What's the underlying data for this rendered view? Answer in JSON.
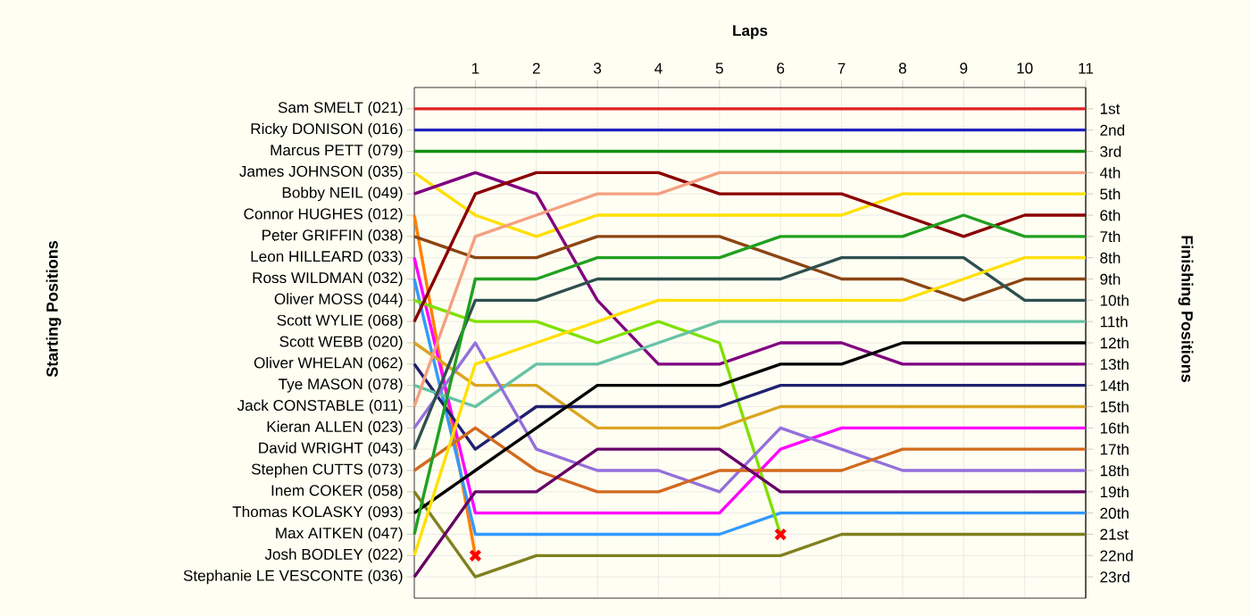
{
  "chart_data": {
    "type": "line",
    "xlabel": "Laps",
    "annotations": [
      "Starting Positions"
    ],
    "y2label": "Finishing Positions",
    "x": [
      0,
      1,
      2,
      3,
      4,
      5,
      6,
      7,
      8,
      9,
      10,
      11
    ],
    "xlim": [
      0,
      11
    ],
    "xticks": [
      1,
      2,
      3,
      4,
      5,
      6,
      7,
      8,
      9,
      10,
      11
    ],
    "y2lim": [
      24,
      0
    ],
    "grid": true,
    "y2ticks": [
      {
        "value": 1,
        "label": "1st"
      },
      {
        "value": 2,
        "label": "2nd"
      },
      {
        "value": 3,
        "label": "3rd"
      },
      {
        "value": 4,
        "label": "4th"
      },
      {
        "value": 5,
        "label": "5th"
      },
      {
        "value": 6,
        "label": "6th"
      },
      {
        "value": 7,
        "label": "7th"
      },
      {
        "value": 8,
        "label": "8th"
      },
      {
        "value": 9,
        "label": "9th"
      },
      {
        "value": 10,
        "label": "10th"
      },
      {
        "value": 11,
        "label": "11th"
      },
      {
        "value": 12,
        "label": "12th"
      },
      {
        "value": 13,
        "label": "13th"
      },
      {
        "value": 14,
        "label": "14th"
      },
      {
        "value": 15,
        "label": "15th"
      },
      {
        "value": 16,
        "label": "16th"
      },
      {
        "value": 17,
        "label": "17th"
      },
      {
        "value": 18,
        "label": "18th"
      },
      {
        "value": 19,
        "label": "19th"
      },
      {
        "value": 20,
        "label": "20th"
      },
      {
        "value": 21,
        "label": "21st"
      },
      {
        "value": 22,
        "label": "22nd"
      },
      {
        "value": 23,
        "label": "23rd"
      }
    ],
    "series": [
      {
        "name": "Sam SMELT (021)",
        "axis": "y2",
        "color": "#e02020",
        "values": [
          1,
          1,
          1,
          1,
          1,
          1,
          1,
          1,
          1,
          1,
          1,
          1
        ]
      },
      {
        "name": "Ricky DONISON (016)",
        "axis": "y2",
        "color": "#2020c0",
        "values": [
          2,
          2,
          2,
          2,
          2,
          2,
          2,
          2,
          2,
          2,
          2,
          2
        ]
      },
      {
        "name": "Marcus PETT (079)",
        "axis": "y2",
        "color": "#109010",
        "values": [
          3,
          3,
          3,
          3,
          3,
          3,
          3,
          3,
          3,
          3,
          3,
          3
        ]
      },
      {
        "name": "James JOHNSON (035)",
        "axis": "y2",
        "color": "#ffe000",
        "values": [
          4,
          6,
          7,
          6,
          6,
          6,
          6,
          6,
          5,
          5,
          5,
          5
        ]
      },
      {
        "name": "Bobby NEIL (049)",
        "axis": "y2",
        "color": "#800080",
        "values": [
          5,
          4,
          5,
          10,
          13,
          13,
          12,
          12,
          13,
          13,
          13,
          13
        ]
      },
      {
        "name": "Connor HUGHES (012)",
        "axis": "y2",
        "color": "#ff8000",
        "values": [
          6,
          22,
          null,
          null,
          null,
          null,
          null,
          null,
          null,
          null,
          null,
          null
        ]
      },
      {
        "name": "Peter GRIFFIN (038)",
        "axis": "y2",
        "color": "#8b4513",
        "values": [
          7,
          8,
          8,
          7,
          7,
          7,
          8,
          9,
          9,
          10,
          9,
          9
        ]
      },
      {
        "name": "Leon HILLEARD (033)",
        "axis": "y2",
        "color": "#ff00ff",
        "values": [
          8,
          20,
          20,
          20,
          20,
          20,
          17,
          16,
          16,
          16,
          16,
          16
        ]
      },
      {
        "name": "Ross WILDMAN (032)",
        "axis": "y2",
        "color": "#3399ff",
        "values": [
          9,
          21,
          21,
          21,
          21,
          21,
          20,
          20,
          20,
          20,
          20,
          20
        ]
      },
      {
        "name": "Oliver MOSS (044)",
        "axis": "y2",
        "color": "#80e000",
        "values": [
          10,
          11,
          11,
          12,
          11,
          12,
          21,
          null,
          null,
          null,
          null,
          null
        ]
      },
      {
        "name": "Scott WYLIE (068)",
        "axis": "y2",
        "color": "#8b0000",
        "values": [
          11,
          5,
          4,
          4,
          4,
          5,
          5,
          5,
          6,
          7,
          6,
          6
        ]
      },
      {
        "name": "Scott WEBB (020)",
        "axis": "y2",
        "color": "#daa520",
        "values": [
          12,
          14,
          14,
          16,
          16,
          16,
          15,
          15,
          15,
          15,
          15,
          15
        ]
      },
      {
        "name": "Oliver WHELAN (062)",
        "axis": "y2",
        "color": "#202070",
        "values": [
          13,
          17,
          15,
          15,
          15,
          15,
          14,
          14,
          14,
          14,
          14,
          14
        ]
      },
      {
        "name": "Tye MASON (078)",
        "axis": "y2",
        "color": "#66c2a5",
        "values": [
          14,
          15,
          13,
          13,
          12,
          11,
          11,
          11,
          11,
          11,
          11,
          11
        ]
      },
      {
        "name": "Jack CONSTABLE (011)",
        "axis": "y2",
        "color": "#f4a080",
        "values": [
          15,
          7,
          6,
          5,
          5,
          4,
          4,
          4,
          4,
          4,
          4,
          4
        ]
      },
      {
        "name": "Kieran ALLEN (023)",
        "axis": "y2",
        "color": "#9370db",
        "values": [
          16,
          12,
          17,
          18,
          18,
          19,
          16,
          17,
          18,
          18,
          18,
          18
        ]
      },
      {
        "name": "David WRIGHT (043)",
        "axis": "y2",
        "color": "#2f4f4f",
        "values": [
          17,
          10,
          10,
          9,
          9,
          9,
          9,
          8,
          8,
          8,
          10,
          10
        ]
      },
      {
        "name": "Stephen CUTTS (073)",
        "axis": "y2",
        "color": "#d2691e",
        "values": [
          18,
          16,
          18,
          19,
          19,
          18,
          18,
          18,
          17,
          17,
          17,
          17
        ]
      },
      {
        "name": "Inem COKER (058)",
        "axis": "y2",
        "color": "#808020",
        "values": [
          19,
          23,
          22,
          22,
          22,
          22,
          22,
          21,
          21,
          21,
          21,
          21
        ]
      },
      {
        "name": "Thomas KOLASKY (093)",
        "axis": "y2",
        "color": "#000000",
        "values": [
          20,
          18,
          16,
          14,
          14,
          14,
          13,
          13,
          12,
          12,
          12,
          12
        ]
      },
      {
        "name": "Max AITKEN (047)",
        "axis": "y2",
        "color": "#20a020",
        "values": [
          21,
          9,
          9,
          8,
          8,
          8,
          7,
          7,
          7,
          6,
          7,
          7
        ]
      },
      {
        "name": "Josh BODLEY (022)",
        "axis": "y2",
        "color": "#ffe000",
        "values": [
          22,
          13,
          12,
          11,
          10,
          10,
          10,
          10,
          10,
          9,
          8,
          8
        ]
      },
      {
        "name": "Stephanie LE VESCONTE (036)",
        "axis": "y2",
        "color": "#660066",
        "values": [
          23,
          19,
          19,
          17,
          17,
          17,
          19,
          19,
          19,
          19,
          19,
          19
        ]
      },
      {
        "type": "scatter",
        "axis": "y2",
        "marker": "cross",
        "color": "#ff0000",
        "x": [
          1,
          6
        ],
        "values": [
          22,
          21
        ]
      }
    ]
  }
}
